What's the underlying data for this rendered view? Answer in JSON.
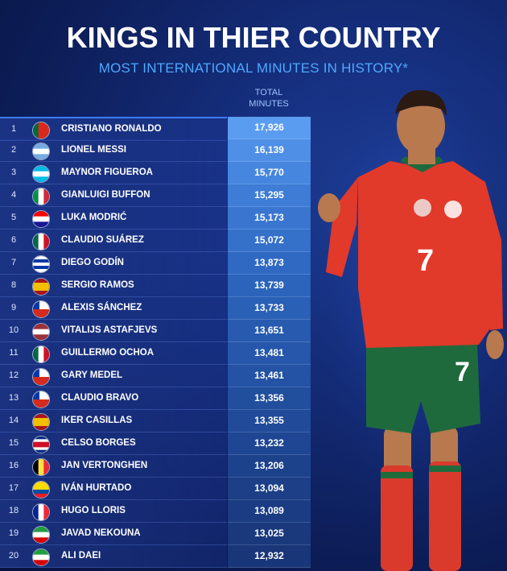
{
  "header": {
    "title": "KINGS IN THIER COUNTRY",
    "subtitle": "MOST INTERNATIONAL MINUTES IN HISTORY*",
    "column_label_line1": "TOTAL",
    "column_label_line2": "MINUTES"
  },
  "player_jersey_number": "7",
  "rows": [
    {
      "rank": "1",
      "name": "CRISTIANO RONALDO",
      "minutes": "17,926",
      "flag": "portugal",
      "value_color": "#5a9cf0"
    },
    {
      "rank": "2",
      "name": "LIONEL MESSI",
      "minutes": "16,139",
      "flag": "argentina",
      "value_color": "#4f8fe6"
    },
    {
      "rank": "3",
      "name": "MAYNOR FIGUEROA",
      "minutes": "15,770",
      "flag": "honduras",
      "value_color": "#4686df"
    },
    {
      "rank": "4",
      "name": "GIANLUIGI BUFFON",
      "minutes": "15,295",
      "flag": "italy",
      "value_color": "#3e7cd6"
    },
    {
      "rank": "5",
      "name": "LUKA MODRIĆ",
      "minutes": "15,173",
      "flag": "croatia",
      "value_color": "#3a76d0"
    },
    {
      "rank": "6",
      "name": "CLAUDIO SUÁREZ",
      "minutes": "15,072",
      "flag": "mexico",
      "value_color": "#3570c9"
    },
    {
      "rank": "7",
      "name": "DIEGO GODÍN",
      "minutes": "13,873",
      "flag": "uruguay",
      "value_color": "#2f69c2"
    },
    {
      "rank": "8",
      "name": "SERGIO RAMOS",
      "minutes": "13,739",
      "flag": "spain",
      "value_color": "#2c64bc"
    },
    {
      "rank": "9",
      "name": "ALEXIS SÁNCHEZ",
      "minutes": "13,733",
      "flag": "chile",
      "value_color": "#2a60b6"
    },
    {
      "rank": "10",
      "name": "VITALIJS ASTAFJEVS",
      "minutes": "13,651",
      "flag": "latvia",
      "value_color": "#285bb0"
    },
    {
      "rank": "11",
      "name": "GUILLERMO OCHOA",
      "minutes": "13,481",
      "flag": "mexico",
      "value_color": "#2657aa"
    },
    {
      "rank": "12",
      "name": "GARY MEDEL",
      "minutes": "13,461",
      "flag": "chile",
      "value_color": "#2452a4"
    },
    {
      "rank": "13",
      "name": "CLAUDIO BRAVO",
      "minutes": "13,356",
      "flag": "chile",
      "value_color": "#224e9e"
    },
    {
      "rank": "14",
      "name": "IKER CASILLAS",
      "minutes": "13,355",
      "flag": "spain",
      "value_color": "#214a98"
    },
    {
      "rank": "15",
      "name": "CELSO BORGES",
      "minutes": "13,232",
      "flag": "costa-rica",
      "value_color": "#1f4692"
    },
    {
      "rank": "16",
      "name": "JAN VERTONGHEN",
      "minutes": "13,206",
      "flag": "belgium",
      "value_color": "#1d428c"
    },
    {
      "rank": "17",
      "name": "IVÁN HURTADO",
      "minutes": "13,094",
      "flag": "ecuador",
      "value_color": "#1c3f87"
    },
    {
      "rank": "18",
      "name": "HUGO LLORIS",
      "minutes": "13,089",
      "flag": "france",
      "value_color": "#1b3c82"
    },
    {
      "rank": "19",
      "name": "JAVAD NEKOUNA",
      "minutes": "13,025",
      "flag": "iran",
      "value_color": "#1a397d"
    },
    {
      "rank": "20",
      "name": "ALI DAEI",
      "minutes": "12,932",
      "flag": "iran",
      "value_color": "#193678"
    }
  ]
}
